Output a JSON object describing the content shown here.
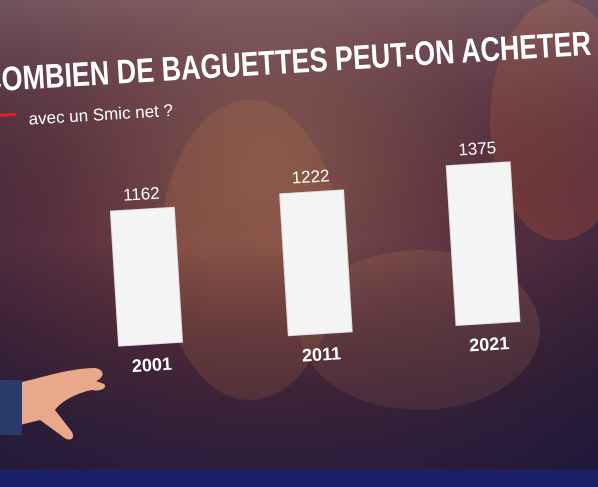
{
  "chart_data": {
    "type": "bar",
    "title": "COMBIEN DE BAGUETTES PEUT-ON ACHETER",
    "subtitle": "avec un Smic net ?",
    "categories": [
      "2001",
      "2011",
      "2021"
    ],
    "values": [
      1162,
      1222,
      1375
    ],
    "color": "#f4f4f4"
  }
}
